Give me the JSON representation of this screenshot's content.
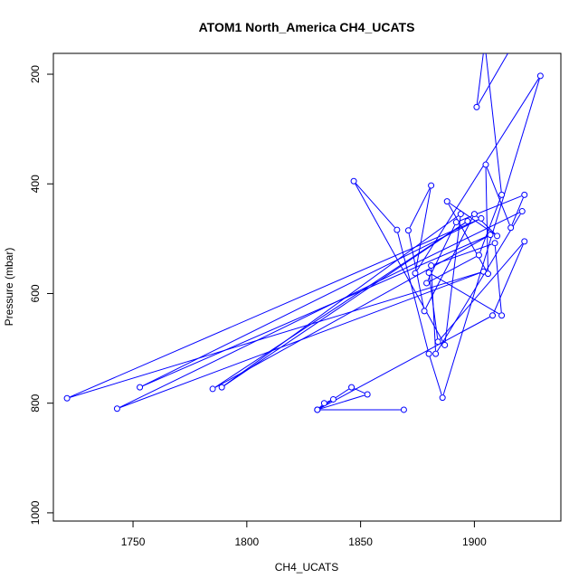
{
  "chart_data": {
    "type": "line",
    "title": "ATOM1 North_America CH4_UCATS",
    "xlabel": "CH4_UCATS",
    "ylabel": "Pressure (mbar)",
    "xlim": [
      1715,
      1938
    ],
    "ylim": [
      1015,
      162
    ],
    "y_reversed": true,
    "xticks": [
      1750,
      1800,
      1850,
      1900
    ],
    "yticks": [
      200,
      400,
      600,
      800,
      1000
    ],
    "series_color": "#0000ff",
    "marker": "open-circle",
    "series": [
      {
        "x": [
          1869,
          1831,
          1838,
          1834,
          1831,
          1853,
          1846,
          1831,
          1908,
          1922,
          1884,
          1880,
          1912,
          1909,
          1881,
          1883,
          1921,
          1743,
          1904,
          1721,
          1903,
          1753,
          1907,
          1785,
          1897,
          1789,
          1894,
          1887,
          1847,
          1866,
          1880,
          1886,
          1929,
          1874,
          1881,
          1871,
          1878,
          1900,
          1910,
          1888,
          1906,
          1905,
          1916,
          1922,
          1892,
          1879,
          1902,
          1912,
          1905,
          1915,
          1901,
          1904,
          1899,
          1919,
          1932,
          1896
        ],
        "y": [
          812,
          812,
          793,
          800,
          812,
          784,
          771,
          812,
          640,
          505,
          688,
          562,
          640,
          508,
          549,
          710,
          450,
          810,
          560,
          791,
          463,
          771,
          493,
          774,
          468,
          771,
          455,
          694,
          395,
          484,
          710,
          790,
          203,
          563,
          403,
          485,
          632,
          455,
          495,
          432,
          564,
          365,
          480,
          420,
          470,
          581,
          530,
          420,
          160,
          160,
          260,
          160,
          160,
          160,
          160,
          160
        ]
      }
    ]
  }
}
